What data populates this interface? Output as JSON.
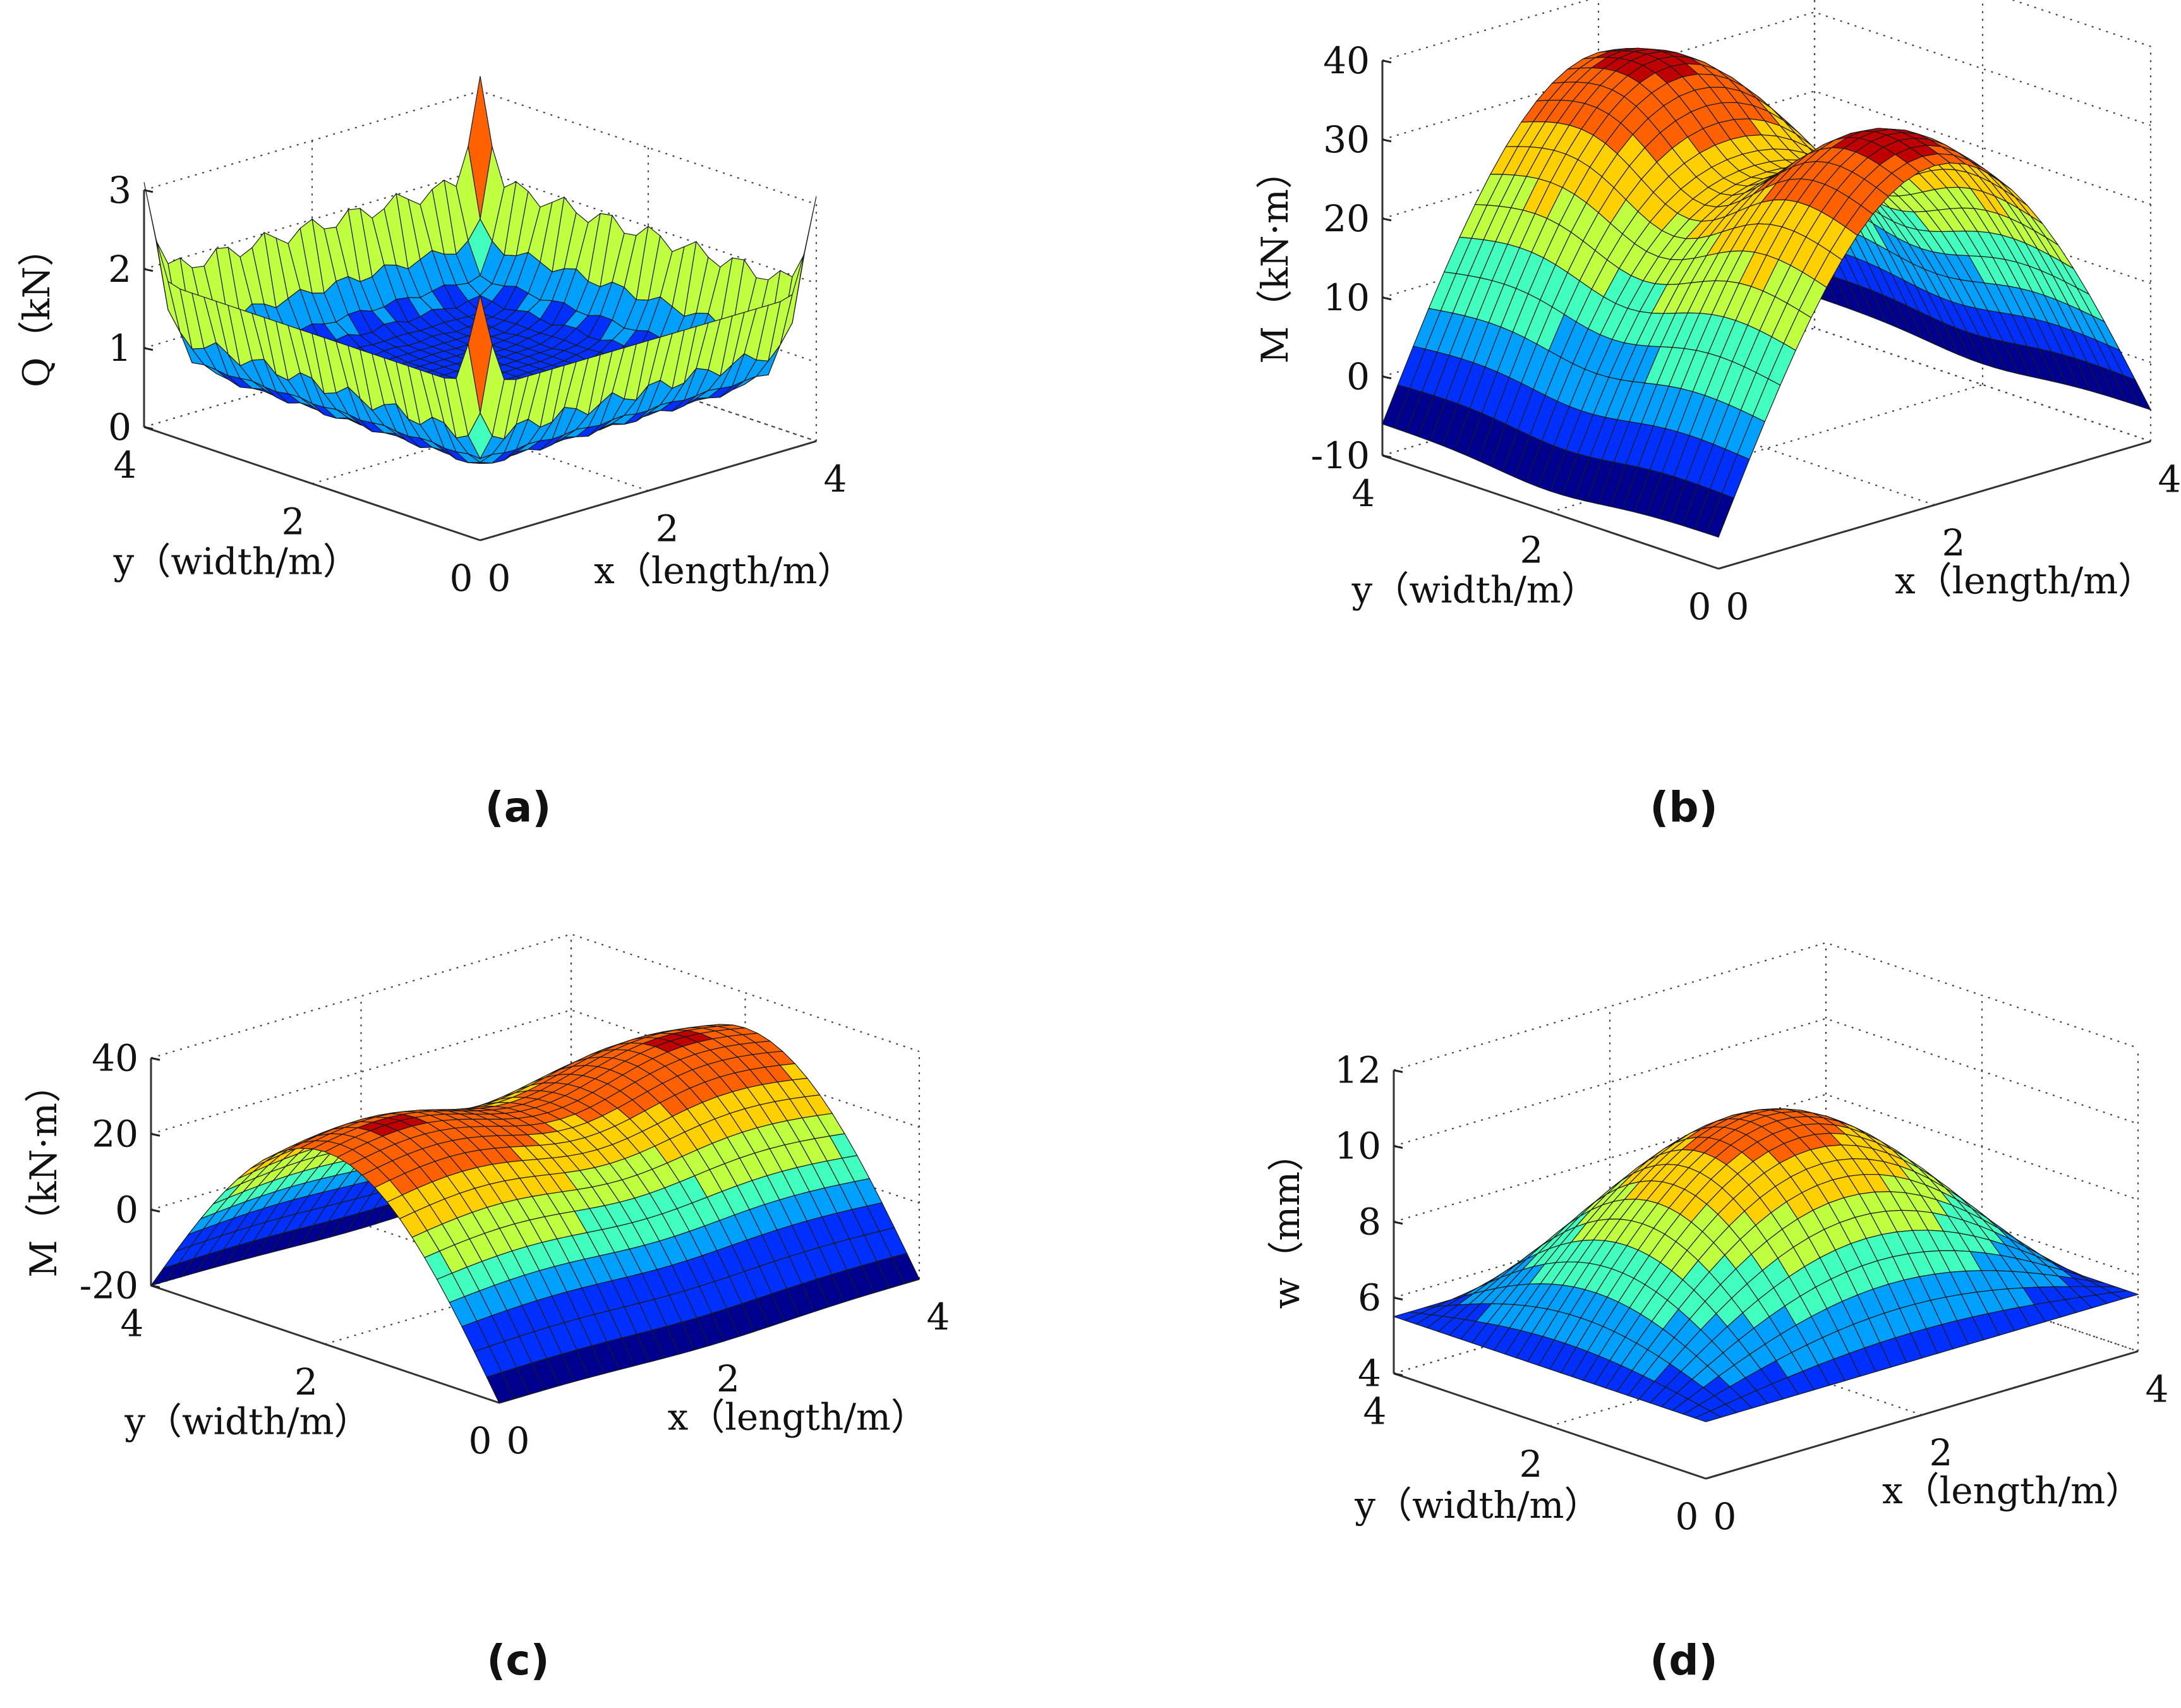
{
  "chart_data": [
    {
      "id": "a",
      "type": "surface",
      "caption": "(a)",
      "zlabel": "Q（kN）",
      "xlabel": "x（length/m）",
      "ylabel": "y（width/m）",
      "xlim": [
        0,
        4
      ],
      "ylim": [
        0,
        4
      ],
      "zlim": [
        0,
        3
      ],
      "xticks": [
        "0",
        "2",
        "4"
      ],
      "yticks": [
        "0",
        "2",
        "4"
      ],
      "zticks": [
        "0",
        "1",
        "2",
        "3"
      ],
      "description_values": {
        "edge_shear_max": 2.0,
        "corner_peak": 2.8,
        "interior_value": 0.5
      }
    },
    {
      "id": "b",
      "type": "surface",
      "caption": "(b)",
      "zlabel": "M（kN·m）",
      "xlabel": "x（length/m）",
      "ylabel": "y（width/m）",
      "xlim": [
        0,
        4
      ],
      "ylim": [
        0,
        4
      ],
      "zlim": [
        -10,
        40
      ],
      "xticks": [
        "0",
        "2",
        "4"
      ],
      "yticks": [
        "0",
        "2",
        "4"
      ],
      "zticks": [
        "-10",
        "0",
        "10",
        "20",
        "30",
        "40"
      ],
      "description_values": {
        "peak_moment": 40,
        "saddle_moment": 25,
        "edge_moment": -6
      }
    },
    {
      "id": "c",
      "type": "surface",
      "caption": "(c)",
      "zlabel": "M（kN·m）",
      "xlabel": "x（length/m）",
      "ylabel": "y（width/m）",
      "xlim": [
        0,
        4
      ],
      "ylim": [
        0,
        4
      ],
      "zlim": [
        -20,
        40
      ],
      "xticks": [
        "0",
        "2",
        "4"
      ],
      "yticks": [
        "0",
        "2",
        "4"
      ],
      "zticks": [
        "-20",
        "0",
        "20",
        "40"
      ],
      "description_values": {
        "peak_moment": 40,
        "saddle_moment": 22,
        "edge_moment": -20
      }
    },
    {
      "id": "d",
      "type": "surface",
      "caption": "(d)",
      "zlabel": "w（mm）",
      "xlabel": "x（length/m）",
      "ylabel": "y（width/m）",
      "xlim": [
        0,
        4
      ],
      "ylim": [
        0,
        4
      ],
      "zlim": [
        4,
        12
      ],
      "xticks": [
        "0",
        "2",
        "4"
      ],
      "yticks": [
        "0",
        "2",
        "4"
      ],
      "zticks": [
        "4",
        "6",
        "8",
        "10",
        "12"
      ],
      "description_values": {
        "max_deflection": 10.5,
        "corner_deflection": 5.5
      }
    }
  ],
  "colormap": [
    "#00008f",
    "#0030ff",
    "#00a0ff",
    "#40ffbf",
    "#bfff40",
    "#ffd000",
    "#ff6000",
    "#c00000"
  ]
}
